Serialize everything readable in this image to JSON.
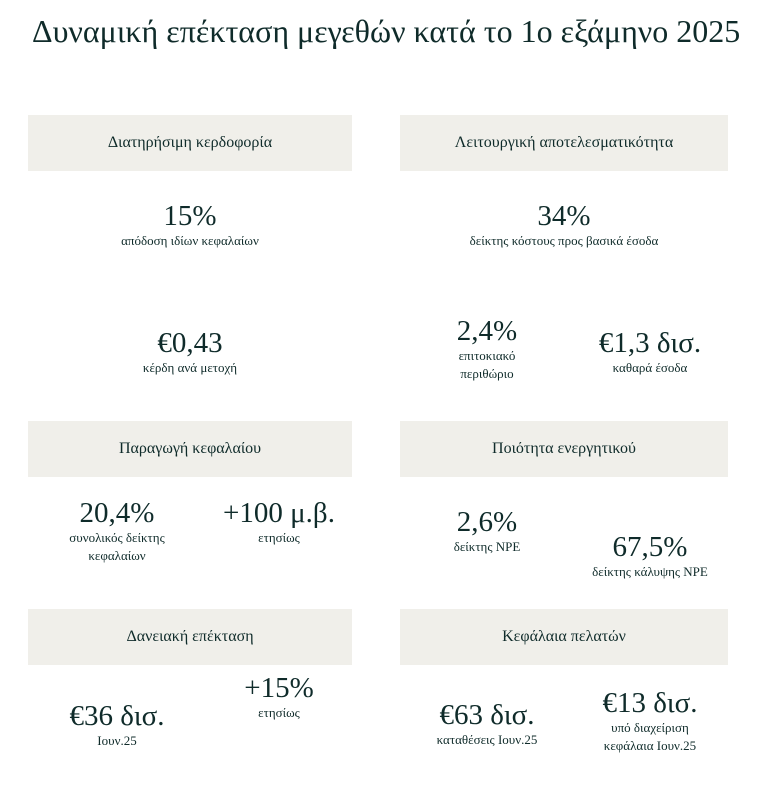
{
  "title": "Δυναμική επέκταση μεγεθών κατά το 1ο εξάμηνο 2025",
  "sections": [
    {
      "header": "Διατηρήσιμη κερδοφορία",
      "metrics": [
        {
          "value": "15%",
          "label": "απόδοση ιδίων κεφαλαίων"
        },
        {
          "value": "€0,43",
          "label": "κέρδη ανά μετοχή"
        }
      ]
    },
    {
      "header": "Λειτουργική αποτελεσματικότητα",
      "metrics": [
        {
          "value": "34%",
          "label": "δείκτης κόστους προς βασικά έσοδα"
        },
        {
          "value": "2,4%",
          "label": "επιτοκιακό",
          "label2": "περιθώριο"
        },
        {
          "value": "€1,3 δισ.",
          "label": "καθαρά έσοδα"
        }
      ]
    },
    {
      "header": "Παραγωγή κεφαλαίου",
      "metrics": [
        {
          "value": "20,4%",
          "label": "συνολικός δείκτης",
          "label2": "κεφαλαίων"
        },
        {
          "value": "+100 μ.β.",
          "label": "ετησίως"
        }
      ]
    },
    {
      "header": "Ποιότητα ενεργητικού",
      "metrics": [
        {
          "value": "2,6%",
          "label": "δείκτης NPE"
        },
        {
          "value": "67,5%",
          "label": "δείκτης κάλυψης NPE"
        }
      ]
    },
    {
      "header": "Δανειακή επέκταση",
      "metrics": [
        {
          "value": "€36 δισ.",
          "label": "Ιουν.25"
        },
        {
          "value": "+15%",
          "label": "ετησίως"
        }
      ]
    },
    {
      "header": "Κεφάλαια πελατών",
      "metrics": [
        {
          "value": "€63 δισ.",
          "label": "καταθέσεις Ιουν.25"
        },
        {
          "value": "€13 δισ.",
          "label": "υπό διαχείριση",
          "label2": "κεφάλαια Ιουν.25"
        }
      ]
    }
  ],
  "colors": {
    "text": "#0f2b2a",
    "header_bg": "#f0efea"
  }
}
